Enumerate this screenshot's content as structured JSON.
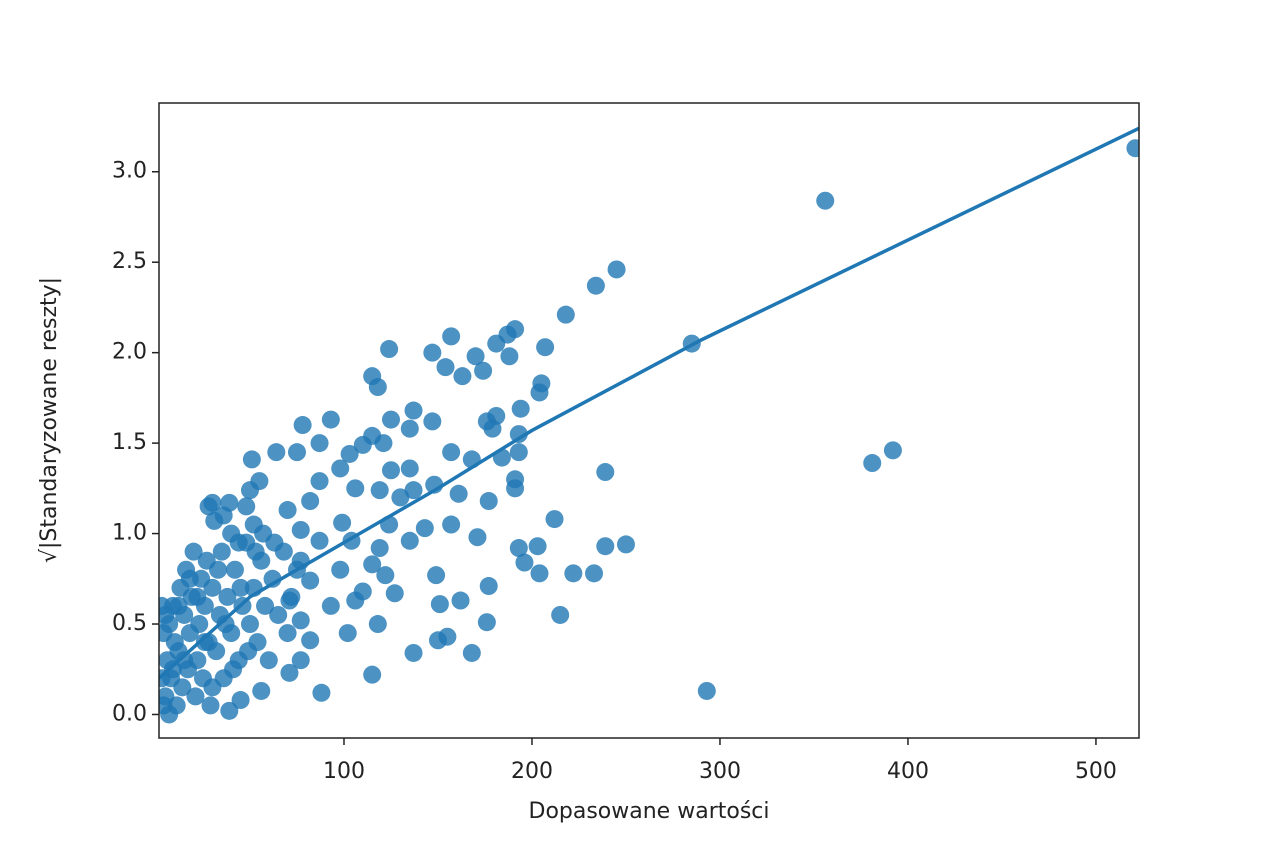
{
  "chart_data": {
    "type": "scatter",
    "xlabel": "Dopasowane wartości",
    "ylabel": "√|Standaryzowane reszty|",
    "color": "#1f77b4",
    "xlim": [
      1.6,
      522.9
    ],
    "ylim": [
      -0.13,
      3.38
    ],
    "xticks": [
      100,
      200,
      300,
      400,
      500
    ],
    "yticks": [
      {
        "value": 0,
        "label": "0.0"
      },
      {
        "value": 0.5,
        "label": "0.5"
      },
      {
        "value": 1,
        "label": "1.0"
      },
      {
        "value": 1.5,
        "label": "1.5"
      },
      {
        "value": 2,
        "label": "2.0"
      },
      {
        "value": 2.5,
        "label": "2.5"
      },
      {
        "value": 3,
        "label": "3.0"
      }
    ],
    "x": [
      521,
      356,
      285,
      293,
      381,
      392,
      245,
      234,
      218,
      207,
      205,
      204,
      194,
      191,
      187,
      188,
      181,
      174,
      170,
      163,
      157,
      154,
      147,
      124,
      115,
      118,
      239,
      212,
      250,
      239,
      233,
      222,
      204,
      203,
      193,
      196,
      215,
      177,
      176,
      168,
      162,
      151,
      149,
      155,
      150,
      137,
      115,
      118,
      102,
      88,
      191,
      191,
      193,
      177,
      171,
      157,
      161,
      157,
      168,
      181,
      176,
      179,
      193,
      184,
      147,
      137,
      135,
      125,
      115,
      121,
      110,
      103,
      93,
      78,
      87,
      75,
      64,
      51,
      135,
      125,
      119,
      130,
      137,
      148,
      143,
      135,
      124,
      119,
      115,
      122,
      127,
      110,
      106,
      93,
      98,
      104,
      99,
      106,
      98,
      87,
      82,
      70,
      77,
      87,
      77,
      82,
      71,
      77,
      82,
      77,
      71,
      56,
      45,
      39,
      50,
      55,
      39,
      30,
      31,
      5,
      6,
      7,
      8,
      9,
      10,
      11,
      12,
      13,
      14,
      15,
      16,
      17,
      18,
      19,
      20,
      21,
      22,
      23,
      24,
      25,
      26,
      27,
      28,
      29,
      30,
      32,
      34,
      35,
      36,
      38,
      40,
      42,
      44,
      46,
      48,
      50,
      52,
      54,
      56,
      58,
      60,
      62,
      65,
      68,
      70,
      72,
      75,
      3,
      4,
      3,
      4,
      5,
      7,
      9,
      12,
      15,
      18,
      22,
      26,
      30,
      33,
      37,
      41,
      45,
      49,
      53,
      57,
      63,
      48,
      40,
      36,
      44,
      28,
      52
    ],
    "y": [
      3.13,
      2.84,
      2.05,
      0.13,
      1.39,
      1.46,
      2.46,
      2.37,
      2.21,
      2.03,
      1.83,
      1.78,
      1.69,
      2.13,
      2.1,
      1.98,
      2.05,
      1.9,
      1.98,
      1.87,
      2.09,
      1.92,
      2.0,
      2.02,
      1.87,
      1.81,
      1.34,
      1.08,
      0.94,
      0.93,
      0.78,
      0.78,
      0.78,
      0.93,
      0.92,
      0.84,
      0.55,
      0.71,
      0.51,
      0.34,
      0.63,
      0.61,
      0.77,
      0.43,
      0.41,
      0.34,
      0.22,
      0.5,
      0.45,
      0.12,
      1.3,
      1.25,
      1.45,
      1.18,
      0.98,
      1.05,
      1.22,
      1.45,
      1.41,
      1.65,
      1.62,
      1.58,
      1.55,
      1.42,
      1.62,
      1.68,
      1.58,
      1.63,
      1.54,
      1.5,
      1.49,
      1.44,
      1.63,
      1.6,
      1.5,
      1.45,
      1.45,
      1.41,
      1.36,
      1.35,
      1.24,
      1.2,
      1.24,
      1.27,
      1.03,
      0.96,
      1.05,
      0.92,
      0.83,
      0.77,
      0.67,
      0.68,
      0.63,
      0.6,
      0.8,
      0.96,
      1.06,
      1.25,
      1.36,
      1.29,
      1.18,
      1.13,
      1.02,
      0.96,
      0.85,
      0.74,
      0.63,
      0.52,
      0.41,
      0.3,
      0.23,
      0.13,
      0.08,
      0.02,
      1.24,
      1.29,
      1.17,
      1.17,
      1.07,
      0.1,
      0.3,
      0.5,
      0.2,
      0.6,
      0.4,
      0.05,
      0.35,
      0.7,
      0.15,
      0.55,
      0.8,
      0.25,
      0.45,
      0.65,
      0.9,
      0.1,
      0.3,
      0.5,
      0.75,
      0.2,
      0.6,
      0.85,
      0.4,
      0.05,
      0.7,
      0.35,
      0.55,
      0.9,
      0.2,
      0.65,
      0.45,
      0.8,
      0.3,
      0.6,
      0.95,
      0.5,
      0.7,
      0.4,
      0.85,
      0.6,
      0.3,
      0.75,
      0.55,
      0.9,
      0.45,
      0.65,
      0.8,
      0.2,
      0.45,
      0.6,
      0.05,
      0.55,
      0.0,
      0.25,
      0.6,
      0.3,
      0.75,
      0.65,
      0.4,
      0.15,
      0.8,
      0.5,
      0.25,
      0.7,
      0.35,
      0.9,
      1.0,
      0.95,
      1.15,
      1.0,
      1.1,
      0.95,
      1.15,
      1.05
    ],
    "fit": {
      "x": [
        1.6,
        50,
        100,
        150,
        200,
        290,
        522.9
      ],
      "y": [
        0.2,
        0.65,
        0.95,
        1.25,
        1.57,
        2.07,
        3.24
      ]
    }
  }
}
